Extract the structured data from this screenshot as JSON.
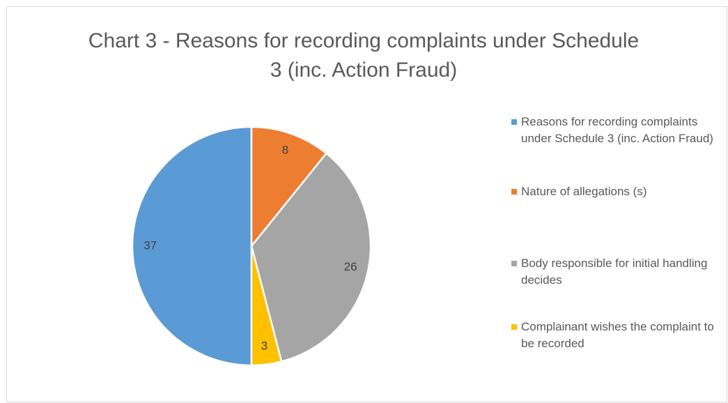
{
  "chart_data": {
    "type": "pie",
    "title": "Chart 3 - Reasons for recording complaints under Schedule 3 (inc. Action Fraud)",
    "categories": [
      "Reasons for recording complaints under Schedule 3 (inc. Action Fraud)",
      "Nature of allegations (s)",
      "Body responsible for initial handling decides",
      "Complainant wishes the complaint to be recorded"
    ],
    "values": [
      37,
      8,
      26,
      3
    ],
    "colors": [
      "#5b9bd5",
      "#ed7d31",
      "#a5a5a5",
      "#ffc000"
    ],
    "start_angle": 180,
    "legend": "right"
  }
}
